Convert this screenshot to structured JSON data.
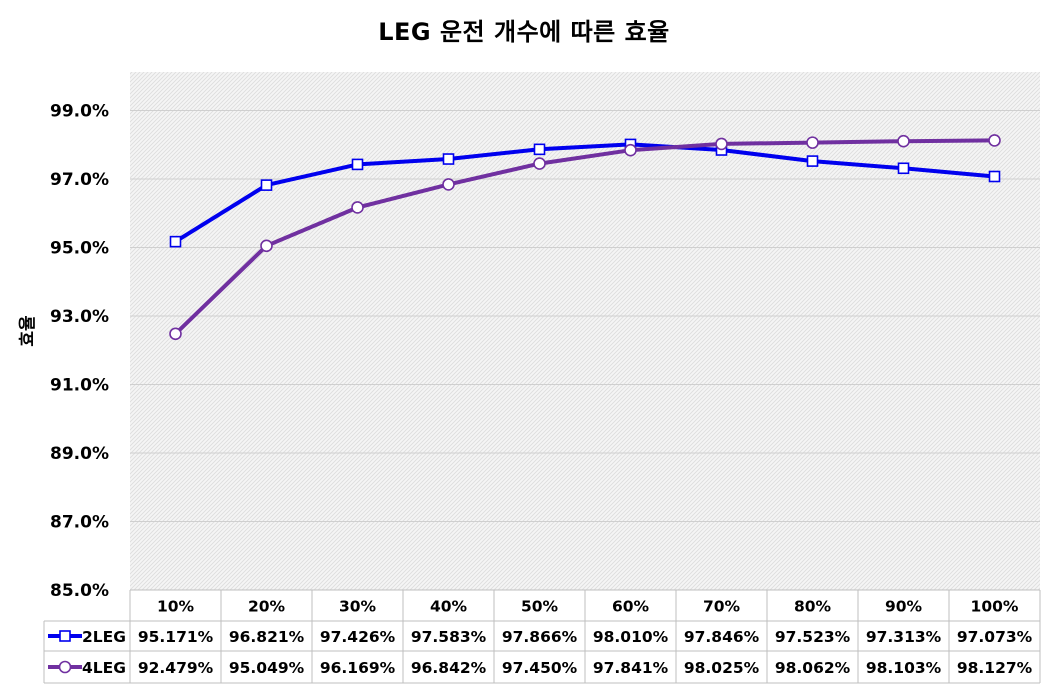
{
  "chart_data": {
    "type": "line",
    "title": "LEG 운전 개수에 따른 효율",
    "xlabel": "",
    "ylabel": "효율",
    "categories": [
      "10%",
      "20%",
      "30%",
      "40%",
      "50%",
      "60%",
      "70%",
      "80%",
      "90%",
      "100%"
    ],
    "ylim": [
      85.0,
      100.0
    ],
    "yticks": [
      "99.0%",
      "97.0%",
      "95.0%",
      "93.0%",
      "91.0%",
      "89.0%",
      "87.0%",
      "85.0%"
    ],
    "ytick_values": [
      99,
      97,
      95,
      93,
      91,
      89,
      87,
      85
    ],
    "grid": true,
    "legend": "data table",
    "series": [
      {
        "name": "2LEG",
        "color": "#0000ee",
        "marker": "square",
        "values": [
          95.171,
          96.821,
          97.426,
          97.583,
          97.866,
          98.01,
          97.846,
          97.523,
          97.313,
          97.073
        ],
        "labels": [
          "95.171%",
          "96.821%",
          "97.426%",
          "97.583%",
          "97.866%",
          "98.010%",
          "97.846%",
          "97.523%",
          "97.313%",
          "97.073%"
        ]
      },
      {
        "name": "4LEG",
        "color": "#7030a0",
        "marker": "circle",
        "values": [
          92.479,
          95.049,
          96.169,
          96.842,
          97.45,
          97.841,
          98.025,
          98.062,
          98.103,
          98.127
        ],
        "labels": [
          "92.479%",
          "95.049%",
          "96.169%",
          "96.842%",
          "97.450%",
          "97.841%",
          "98.025%",
          "98.062%",
          "98.103%",
          "98.127%"
        ]
      }
    ]
  }
}
